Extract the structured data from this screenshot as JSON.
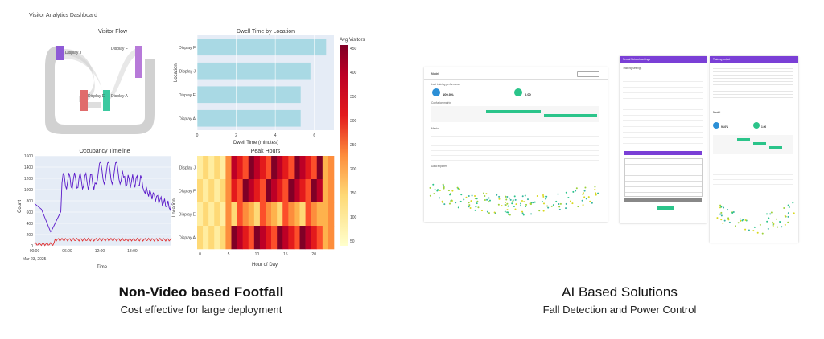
{
  "left": {
    "dashboard_title": "Visitor Analytics Dashboard",
    "visitor_flow": {
      "title": "Visitor Flow",
      "nodes": [
        {
          "label": "Display J",
          "color": "#8e5ad6"
        },
        {
          "label": "Display F",
          "color": "#b77ad9"
        },
        {
          "label": "Display E",
          "color": "#e06c6c"
        },
        {
          "label": "Display A",
          "color": "#3cc9a0"
        }
      ]
    },
    "dwell_chart": {
      "title": "Dwell Time by Location",
      "xlabel": "Dwell Time (minutes)",
      "ylabel": "Location",
      "xticks": [
        "0",
        "2",
        "4",
        "6"
      ],
      "categories": [
        "Display A",
        "Display E",
        "Display J",
        "Display F"
      ],
      "values": [
        5.3,
        5.3,
        5.8,
        6.6
      ],
      "xlim": [
        0,
        7
      ],
      "bar_color": "#a9d9e4"
    },
    "occupancy_chart": {
      "title": "Occupancy Timeline",
      "xlabel": "Time",
      "ylabel": "Count",
      "yticks": [
        "1600",
        "1400",
        "1200",
        "1000",
        "800",
        "600",
        "400",
        "200",
        "0"
      ],
      "xticks": [
        "00:00",
        "06:00",
        "12:00",
        "18:00"
      ],
      "date_label": "Mar 23, 2025"
    },
    "peak_chart": {
      "title": "Peak Hours",
      "xlabel": "Hour of Day",
      "ylabel": "Location",
      "rows": [
        "Display J",
        "Display F",
        "Display E",
        "Display A"
      ],
      "xticks": [
        "0",
        "5",
        "10",
        "15",
        "20"
      ]
    },
    "colorbar": {
      "title": "Avg Visitors",
      "ticks": [
        "450",
        "400",
        "350",
        "300",
        "250",
        "200",
        "150",
        "100",
        "50"
      ]
    },
    "caption_heading": "Non-Video based Footfall",
    "caption_sub": "Cost effective for large deployment"
  },
  "right": {
    "panel1": {
      "title": "Model",
      "perf_label": "Last training performance",
      "accuracy": "100.0%",
      "loss": "0.00",
      "confusion_label": "Confusion matrix",
      "metrics_label": "Metrics",
      "explorer_label": "Data explorer"
    },
    "panel2": {
      "header": "Neural Network settings",
      "training_label": "Training settings",
      "start_btn": "Start training",
      "save_btn": "Save model"
    },
    "panel3": {
      "header": "Training output",
      "model_label": "Model",
      "accuracy": "98.0%",
      "loss": "1.00"
    },
    "caption_heading": "AI Based Solutions",
    "caption_sub": "Fall Detection and Power Control"
  }
}
